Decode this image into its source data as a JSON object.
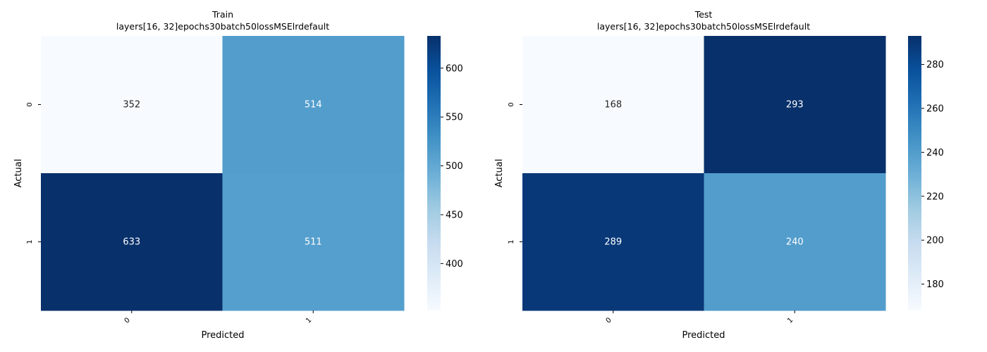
{
  "chart_data": [
    {
      "type": "heatmap",
      "title": "Train",
      "subtitle": "layers[16, 32]epochs30batch50lossMSElrdefault",
      "xlabel": "Predicted",
      "ylabel": "Actual",
      "x_categories": [
        "0",
        "1"
      ],
      "y_categories": [
        "0",
        "1"
      ],
      "values": [
        [
          352,
          514
        ],
        [
          633,
          511
        ]
      ],
      "colormap": "Blues",
      "colorbar": {
        "min": 352,
        "max": 633,
        "ticks": [
          400,
          450,
          500,
          550,
          600
        ]
      }
    },
    {
      "type": "heatmap",
      "title": "Test",
      "subtitle": "layers[16, 32]epochs30batch50lossMSElrdefault",
      "xlabel": "Predicted",
      "ylabel": "Actual",
      "x_categories": [
        "0",
        "1"
      ],
      "y_categories": [
        "0",
        "1"
      ],
      "values": [
        [
          168,
          293
        ],
        [
          289,
          240
        ]
      ],
      "colormap": "Blues",
      "colorbar": {
        "min": 168,
        "max": 293,
        "ticks": [
          180,
          200,
          220,
          240,
          260,
          280
        ]
      }
    }
  ]
}
